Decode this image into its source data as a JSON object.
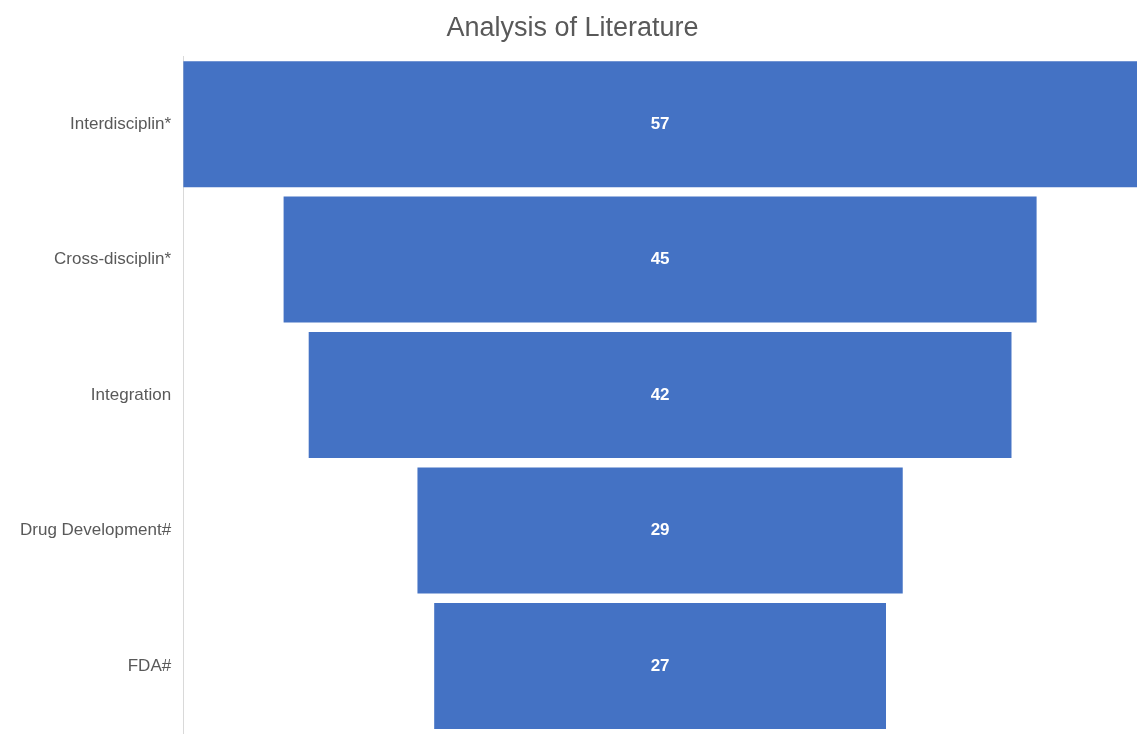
{
  "chart_data": {
    "type": "other",
    "title": "Analysis of Literature",
    "categories": [
      "Interdisciplin*",
      "Cross-disciplin*",
      "Integration",
      "Drug Development#",
      "FDA#"
    ],
    "values": [
      57,
      45,
      42,
      29,
      27
    ],
    "color": "#4472c4",
    "data_labels": true
  }
}
